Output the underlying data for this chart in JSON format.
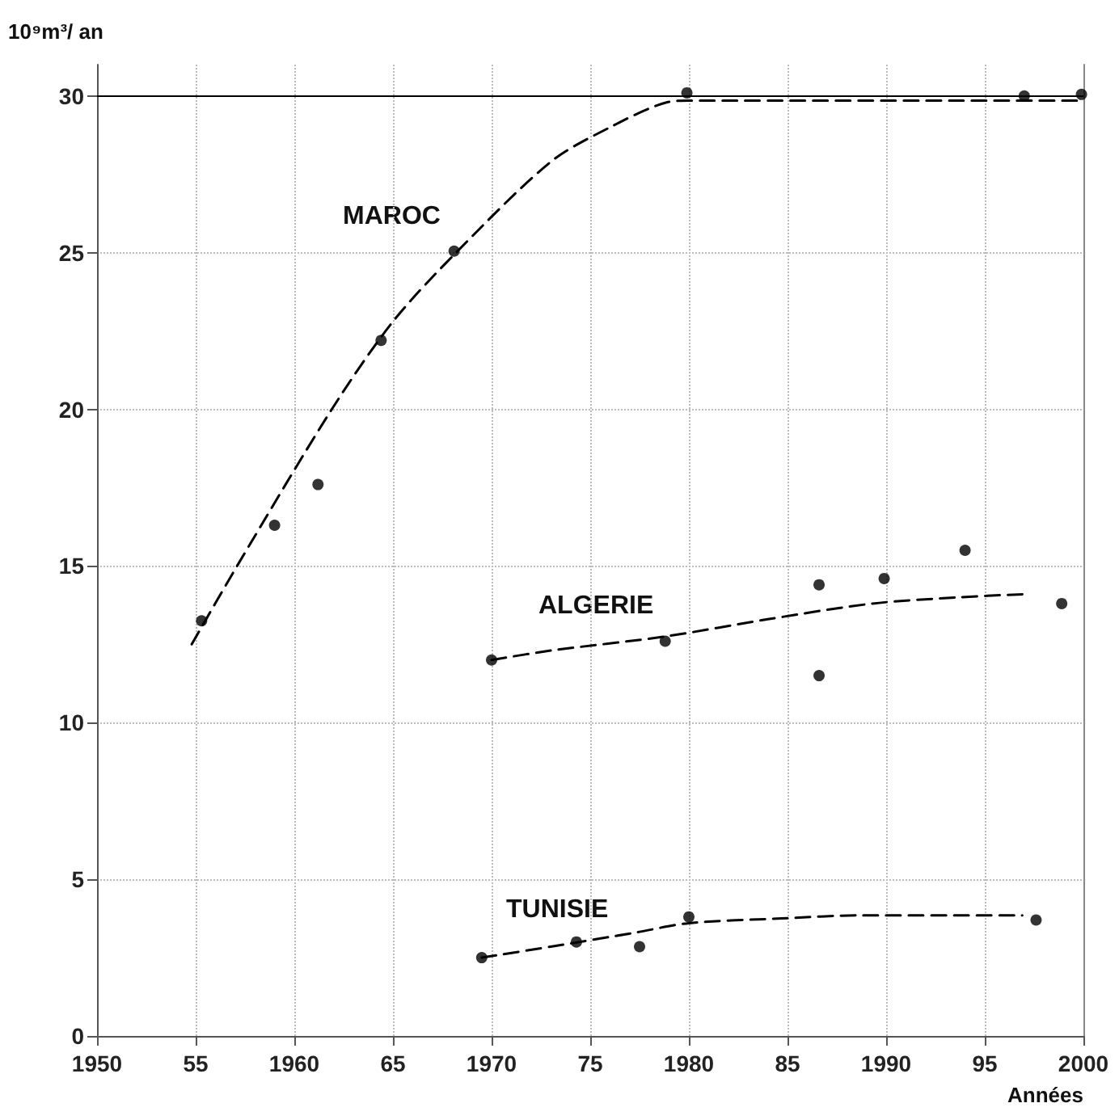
{
  "chart_data": {
    "type": "scatter",
    "ylabel": "10⁹m³/ an",
    "xlabel": "Années",
    "xlim": [
      1950,
      2000
    ],
    "ylim": [
      0,
      31
    ],
    "xticks": [
      1950,
      {
        "value": 1955,
        "label": "55"
      },
      1960,
      {
        "value": 1965,
        "label": "65"
      },
      1970,
      {
        "value": 1975,
        "label": "75"
      },
      1980,
      {
        "value": 1985,
        "label": "85"
      },
      1990,
      {
        "value": 1995,
        "label": "95"
      },
      2000
    ],
    "yticks": [
      0,
      5,
      10,
      15,
      20,
      25,
      30
    ],
    "grid": true,
    "marker": "circle",
    "series": [
      {
        "color": "#000000",
        "x": [
          1955.3,
          1959.0,
          1961.2,
          1964.4,
          1968.1,
          1979.9,
          1997.0,
          1999.9
        ],
        "values": [
          13.25,
          16.3,
          17.6,
          22.2,
          25.05,
          30.1,
          30.0,
          30.05
        ]
      },
      {
        "type": "line",
        "marker": "none",
        "line_style": "dashed",
        "color": "#000000",
        "x": [
          1954.8,
          1957.1,
          1961.9,
          1965.0,
          1968.2,
          1973.0,
          1976.0,
          1978.9,
          1980.0,
          2000.0
        ],
        "values": [
          12.5,
          15.0,
          20.0,
          22.8,
          25.0,
          27.9,
          29.0,
          29.8,
          29.85,
          29.85
        ]
      },
      {
        "color": "#000000",
        "x": [
          1970.0,
          1978.8,
          1986.6,
          1986.6,
          1989.9,
          1994.0,
          1998.9
        ],
        "values": [
          12.0,
          12.6,
          14.4,
          11.5,
          14.6,
          15.5,
          13.8
        ]
      },
      {
        "type": "line",
        "marker": "none",
        "line_style": "dashed",
        "color": "#000000",
        "x": [
          1970.0,
          1973.0,
          1978.8,
          1984.0,
          1989.3,
          1993.7,
          1997.0
        ],
        "values": [
          12.0,
          12.3,
          12.75,
          13.3,
          13.8,
          14.0,
          14.1
        ]
      },
      {
        "color": "#000000",
        "x": [
          1969.5,
          1974.3,
          1977.5,
          1980.0,
          1997.6
        ],
        "values": [
          2.5,
          3.0,
          2.85,
          3.8,
          3.7
        ]
      },
      {
        "type": "line",
        "marker": "none",
        "line_style": "dashed",
        "color": "#000000",
        "x": [
          1969.5,
          1973.0,
          1977.3,
          1980.0,
          1984.7,
          1988.7,
          1996.9
        ],
        "values": [
          2.5,
          2.85,
          3.3,
          3.6,
          3.75,
          3.85,
          3.85
        ]
      }
    ],
    "ref_lines": [
      {
        "axis": "y",
        "value": 30,
        "color": "#000000",
        "line_style": "solid"
      }
    ],
    "annotations": [
      "MAROC",
      "ALGERIE",
      "TUNISIE"
    ]
  }
}
